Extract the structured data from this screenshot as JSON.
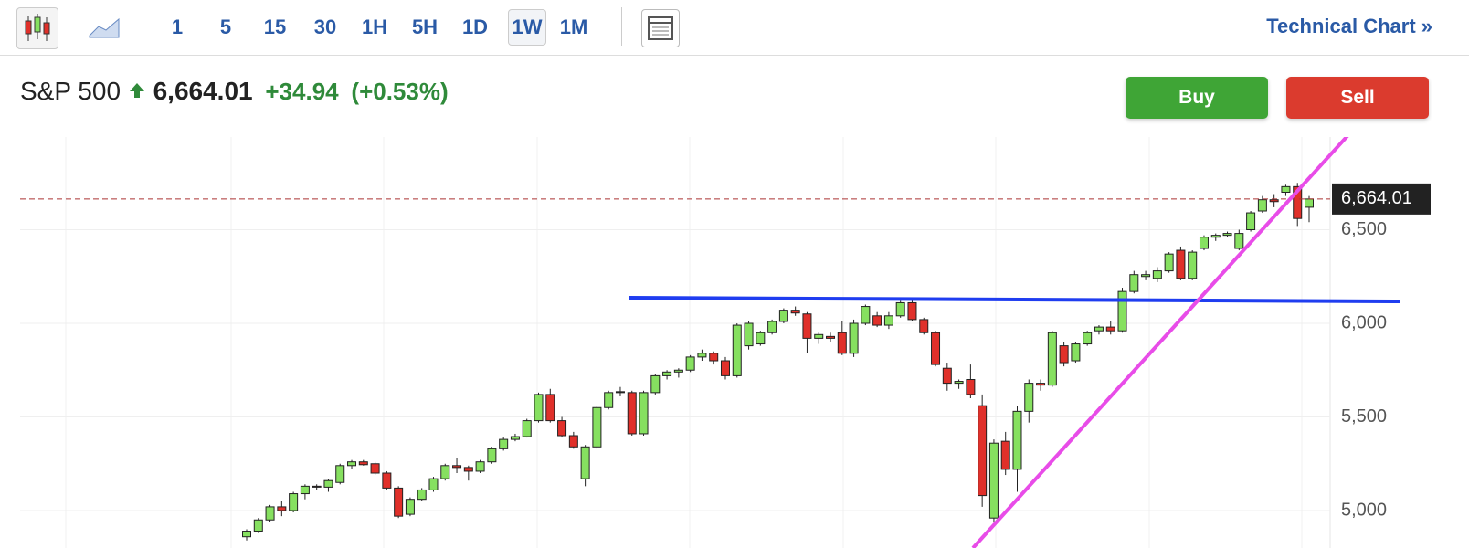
{
  "toolbar": {
    "intervals": [
      "1",
      "5",
      "15",
      "30",
      "1H",
      "5H",
      "1D",
      "1W",
      "1M"
    ],
    "active_interval_index": 7,
    "link": "Technical Chart »"
  },
  "quote": {
    "name": "S&P 500",
    "price": "6,664.01",
    "change": "+34.94",
    "change_percent": "(+0.53%)"
  },
  "actions": {
    "buy": "Buy",
    "sell": "Sell"
  },
  "chart_data": {
    "type": "candlestick",
    "up_color": "#86e060",
    "down_color": "#e0302a",
    "ylim": [
      4800,
      7000
    ],
    "yticks": [
      {
        "value": 5000,
        "label": "5,000"
      },
      {
        "value": 5500,
        "label": "5,500"
      },
      {
        "value": 6000,
        "label": "6,000"
      },
      {
        "value": 6500,
        "label": "6,500"
      }
    ],
    "last_price": {
      "value": 6664.01,
      "label": "6,664.01"
    },
    "open": [
      4860,
      4890,
      4950,
      5020,
      5000,
      5090,
      5130,
      5125,
      5150,
      5240,
      5260,
      5250,
      5200,
      5120,
      4980,
      5060,
      5110,
      5170,
      5240,
      5230,
      5210,
      5260,
      5330,
      5380,
      5395,
      5480,
      5620,
      5480,
      5400,
      5170,
      5340,
      5550,
      5630,
      5630,
      5410,
      5630,
      5720,
      5740,
      5750,
      5820,
      5840,
      5800,
      5720,
      5880,
      5890,
      5950,
      6010,
      6070,
      6050,
      5920,
      5930,
      5950,
      5840,
      6000,
      6040,
      5990,
      6040,
      6110,
      6020,
      5950,
      5760,
      5680,
      5700,
      5560,
      4960,
      5370,
      5220,
      5530,
      5680,
      5670,
      5880,
      5800,
      5890,
      5960,
      5980,
      5960,
      6170,
      6250,
      6240,
      6280,
      6390,
      6240,
      6400,
      6460,
      6470,
      6400,
      6500,
      6600,
      6660,
      6700,
      6730,
      6620
    ],
    "high": [
      4900,
      4960,
      5030,
      5050,
      5100,
      5140,
      5140,
      5170,
      5250,
      5270,
      5270,
      5260,
      5210,
      5130,
      5070,
      5120,
      5180,
      5250,
      5280,
      5240,
      5270,
      5340,
      5390,
      5410,
      5490,
      5630,
      5650,
      5500,
      5420,
      5350,
      5560,
      5640,
      5660,
      5640,
      5640,
      5730,
      5750,
      5760,
      5830,
      5860,
      5850,
      5820,
      6000,
      6010,
      5960,
      6020,
      6080,
      6090,
      6060,
      5950,
      5950,
      6010,
      6020,
      6100,
      6060,
      6060,
      6120,
      6130,
      6030,
      5960,
      5790,
      5700,
      5780,
      5620,
      5380,
      5420,
      5560,
      5700,
      5700,
      5960,
      5900,
      5900,
      5960,
      5990,
      6010,
      6190,
      6280,
      6280,
      6300,
      6380,
      6410,
      6390,
      6470,
      6480,
      6490,
      6500,
      6600,
      6680,
      6690,
      6740,
      6750,
      6680
    ],
    "low": [
      4840,
      4880,
      4940,
      4970,
      4990,
      5060,
      5110,
      5100,
      5140,
      5220,
      5240,
      5190,
      5110,
      4960,
      4970,
      5050,
      5100,
      5160,
      5200,
      5160,
      5200,
      5250,
      5320,
      5370,
      5390,
      5470,
      5470,
      5390,
      5330,
      5130,
      5330,
      5540,
      5610,
      5400,
      5400,
      5620,
      5700,
      5710,
      5740,
      5800,
      5780,
      5700,
      5710,
      5860,
      5880,
      5940,
      6000,
      6040,
      5840,
      5890,
      5900,
      5830,
      5820,
      5990,
      5980,
      5970,
      6030,
      6010,
      5940,
      5770,
      5640,
      5650,
      5600,
      5020,
      4940,
      5190,
      5100,
      5470,
      5640,
      5660,
      5770,
      5790,
      5880,
      5940,
      5940,
      5950,
      6160,
      6230,
      6220,
      6270,
      6230,
      6230,
      6390,
      6440,
      6460,
      6390,
      6490,
      6590,
      6620,
      6680,
      6520,
      6540
    ],
    "close": [
      4890,
      4950,
      5020,
      5000,
      5090,
      5130,
      5125,
      5160,
      5240,
      5260,
      5245,
      5200,
      5120,
      4970,
      5060,
      5110,
      5170,
      5240,
      5230,
      5210,
      5260,
      5330,
      5380,
      5395,
      5480,
      5620,
      5480,
      5400,
      5340,
      5340,
      5550,
      5630,
      5635,
      5410,
      5630,
      5720,
      5740,
      5750,
      5820,
      5840,
      5800,
      5720,
      5990,
      6000,
      5950,
      6010,
      6070,
      6055,
      5920,
      5940,
      5920,
      5840,
      6000,
      6090,
      5990,
      6040,
      6110,
      6020,
      5950,
      5780,
      5680,
      5690,
      5620,
      5080,
      5360,
      5220,
      5530,
      5680,
      5670,
      5950,
      5790,
      5890,
      5950,
      5980,
      5960,
      6170,
      6260,
      6260,
      6280,
      6370,
      6240,
      6380,
      6460,
      6470,
      6480,
      6480,
      6590,
      6660,
      6650,
      6730,
      6560,
      6664.01
    ]
  }
}
